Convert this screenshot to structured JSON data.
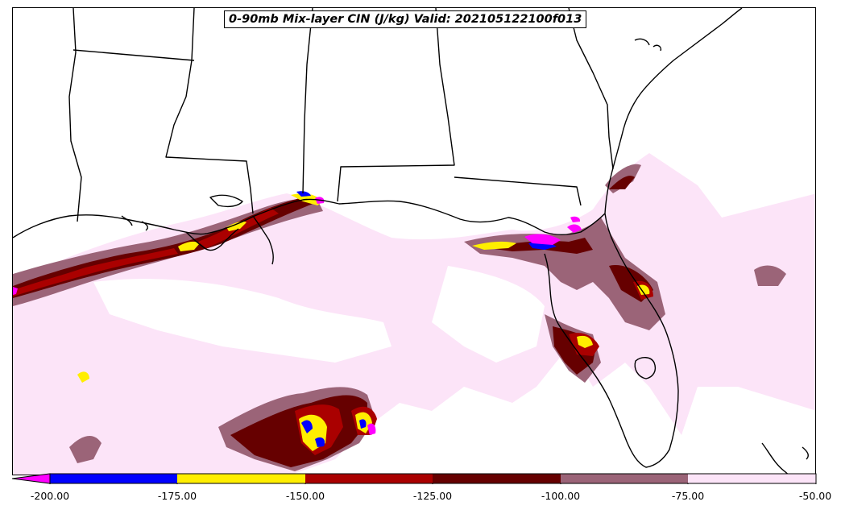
{
  "title": "0-90mb Mix-layer CIN (J/kg) Valid: 202105122100f013",
  "colorbar": {
    "levels": [
      {
        "label": "-200.00",
        "color": "#0000ff"
      },
      {
        "label": "-175.00",
        "color": "#ffee00"
      },
      {
        "label": "-150.00",
        "color": "#aa0000"
      },
      {
        "label": "-125.00",
        "color": "#660000"
      },
      {
        "label": "-100.00",
        "color": "#9b6478"
      },
      {
        "label": "-75.00",
        "color": "#fce4f8"
      },
      {
        "label": "-50.00",
        "color": ""
      }
    ],
    "underflow_color": "#ff00ff",
    "extend": "min"
  },
  "map": {
    "region": "Gulf of Mexico / US Southeast",
    "border_color": "#000000"
  }
}
